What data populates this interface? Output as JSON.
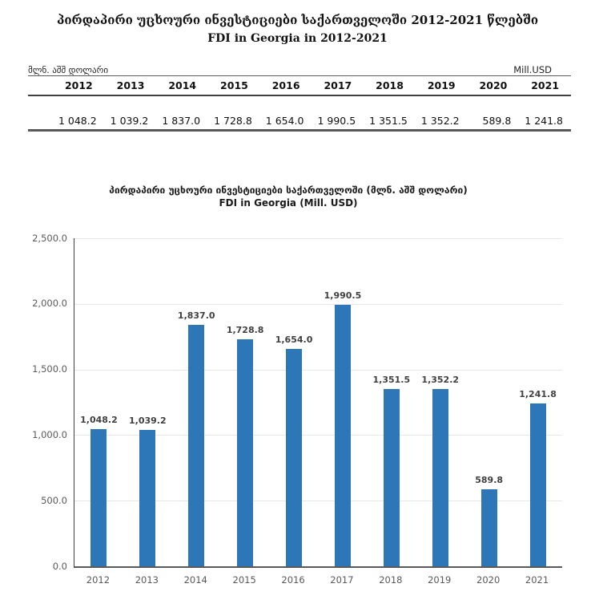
{
  "header": {
    "title_ka": "პირდაპირი უცხოური ინვესტიციები საქართველოში 2012-2021 წლებში",
    "title_en": "FDI in Georgia in 2012-2021"
  },
  "table": {
    "unit_label_ka": "მლნ. აშშ დოლარი",
    "unit_label_en": "Mill.USD",
    "years": [
      "2012",
      "2013",
      "2014",
      "2015",
      "2016",
      "2017",
      "2018",
      "2019",
      "2020",
      "2021"
    ],
    "values": [
      "1 048.2",
      "1 039.2",
      "1 837.0",
      "1 728.8",
      "1 654.0",
      "1 990.5",
      "1 351.5",
      "1 352.2",
      "589.8",
      "1 241.8"
    ]
  },
  "chart": {
    "title_ka": "პირდაპირი უცხოური ინვესტიციები საქართველოში (მლნ. აშშ დოლარი)",
    "title_en": "FDI in Georgia (Mill. USD)"
  },
  "chart_data": {
    "type": "bar",
    "title": "პირდაპირი უცხოური ინვესტიციები საქართველოში (მლნ. აშშ დოლარი) — FDI in Georgia (Mill. USD)",
    "categories": [
      "2012",
      "2013",
      "2014",
      "2015",
      "2016",
      "2017",
      "2018",
      "2019",
      "2020",
      "2021"
    ],
    "values": [
      1048.2,
      1039.2,
      1837.0,
      1728.8,
      1654.0,
      1990.5,
      1351.5,
      1352.2,
      589.8,
      1241.8
    ],
    "value_labels": [
      "1,048.2",
      "1,039.2",
      "1,837.0",
      "1,728.8",
      "1,654.0",
      "1,990.5",
      "1,351.5",
      "1,352.2",
      "589.8",
      "1,241.8"
    ],
    "xlabel": "",
    "ylabel": "",
    "ylim": [
      0,
      2500
    ],
    "ytick_step": 500,
    "ytick_labels": [
      "0.0",
      "500.0",
      "1,000.0",
      "1,500.0",
      "2,000.0",
      "2,500.0"
    ],
    "grid": true,
    "legend": "none"
  },
  "colors": {
    "bar": "#2d76b7",
    "gridline": "#e6e6e6",
    "axis": "#404040",
    "tick_label": "#595959",
    "data_label": "#404040"
  }
}
